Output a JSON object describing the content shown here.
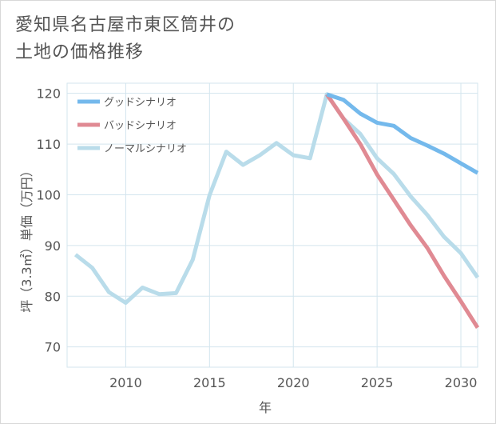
{
  "header": {
    "title_line1": "愛知県名古屋市東区筒井の",
    "title_line2": "土地の価格推移"
  },
  "colors": {
    "good": "#74b9ec",
    "bad": "#e08a93",
    "normal": "#b9dcea",
    "grid": "#d3e5ee",
    "text": "#555555"
  },
  "chart_data": {
    "type": "line",
    "title": "愛知県名古屋市東区筒井の土地の価格推移",
    "xlabel": "年",
    "ylabel": "坪（3.3㎡）単価（万円）",
    "xlim": [
      2006.5,
      2031
    ],
    "ylim": [
      66,
      122
    ],
    "xticks": [
      2010,
      2015,
      2020,
      2025,
      2030
    ],
    "yticks": [
      70,
      80,
      90,
      100,
      110,
      120
    ],
    "grid": true,
    "legend_position": "top-left",
    "series": [
      {
        "name": "グッドシナリオ",
        "color_key": "good",
        "x": [
          2022,
          2023,
          2024,
          2025,
          2026,
          2027,
          2028,
          2029,
          2030,
          2031
        ],
        "values": [
          119.8,
          118.7,
          116.0,
          114.2,
          113.6,
          111.2,
          109.7,
          108.1,
          106.2,
          104.3
        ]
      },
      {
        "name": "バッドシナリオ",
        "color_key": "bad",
        "x": [
          2022,
          2023,
          2024,
          2025,
          2026,
          2027,
          2028,
          2029,
          2030,
          2031
        ],
        "values": [
          119.8,
          115.0,
          110.0,
          104.0,
          99.0,
          94.0,
          89.5,
          84.0,
          79.0,
          73.8
        ]
      },
      {
        "name": "ノーマルシナリオ",
        "color_key": "normal",
        "x": [
          2007,
          2008,
          2009,
          2010,
          2011,
          2012,
          2013,
          2014,
          2015,
          2016,
          2017,
          2018,
          2019,
          2020,
          2021,
          2022,
          2023,
          2024,
          2025,
          2026,
          2027,
          2028,
          2029,
          2030,
          2031
        ],
        "values": [
          88.2,
          85.6,
          80.8,
          78.7,
          81.7,
          80.4,
          80.6,
          87.2,
          99.9,
          108.5,
          105.9,
          107.8,
          110.2,
          107.8,
          107.2,
          119.8,
          115.0,
          112.0,
          107.2,
          104.1,
          99.7,
          96.0,
          91.7,
          88.5,
          83.7
        ]
      }
    ]
  }
}
